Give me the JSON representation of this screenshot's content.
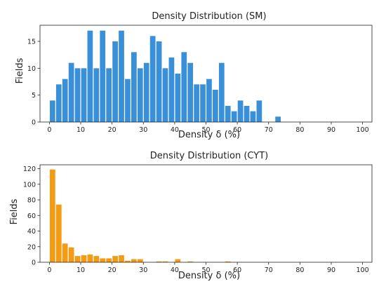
{
  "chart_data": [
    {
      "type": "bar",
      "title": "Density Distribution (SM)",
      "xlabel": "Density δ (%)",
      "ylabel": "Fields",
      "color": "#3a8fd9",
      "bin_width": 2,
      "xlim": [
        0,
        100
      ],
      "ylim": [
        0,
        18
      ],
      "xticks": [
        0,
        10,
        20,
        30,
        40,
        50,
        60,
        70,
        80,
        90,
        100
      ],
      "yticks": [
        0,
        5,
        10,
        15
      ],
      "x": [
        0,
        2,
        4,
        6,
        8,
        10,
        12,
        14,
        16,
        18,
        20,
        22,
        24,
        26,
        28,
        30,
        32,
        34,
        36,
        38,
        40,
        42,
        44,
        46,
        48,
        50,
        52,
        54,
        56,
        58,
        60,
        62,
        64,
        66,
        72
      ],
      "values": [
        4,
        7,
        8,
        11,
        10,
        10,
        17,
        10,
        17,
        10,
        15,
        17,
        8,
        13,
        10,
        11,
        16,
        15,
        10,
        12,
        9,
        13,
        11,
        7,
        7,
        8,
        6,
        11,
        3,
        2,
        4,
        3,
        2,
        4,
        1
      ],
      "grid": false,
      "legend": "none"
    },
    {
      "type": "bar",
      "title": "Density Distribution (CYT)",
      "xlabel": "Density δ (%)",
      "ylabel": "Fields",
      "color": "#f59a13",
      "bin_width": 2,
      "xlim": [
        0,
        100
      ],
      "ylim": [
        0,
        125
      ],
      "xticks": [
        0,
        10,
        20,
        30,
        40,
        50,
        60,
        70,
        80,
        90,
        100
      ],
      "yticks": [
        0,
        20,
        40,
        60,
        80,
        100,
        120
      ],
      "x": [
        0,
        2,
        4,
        6,
        8,
        10,
        12,
        14,
        16,
        18,
        20,
        22,
        24,
        26,
        28,
        34,
        36,
        40,
        44,
        56
      ],
      "values": [
        119,
        74,
        24,
        19,
        8,
        9,
        10,
        8,
        5,
        5,
        8,
        9,
        2,
        4,
        4,
        1,
        1,
        4,
        1,
        1
      ],
      "grid": false,
      "legend": "none"
    }
  ]
}
